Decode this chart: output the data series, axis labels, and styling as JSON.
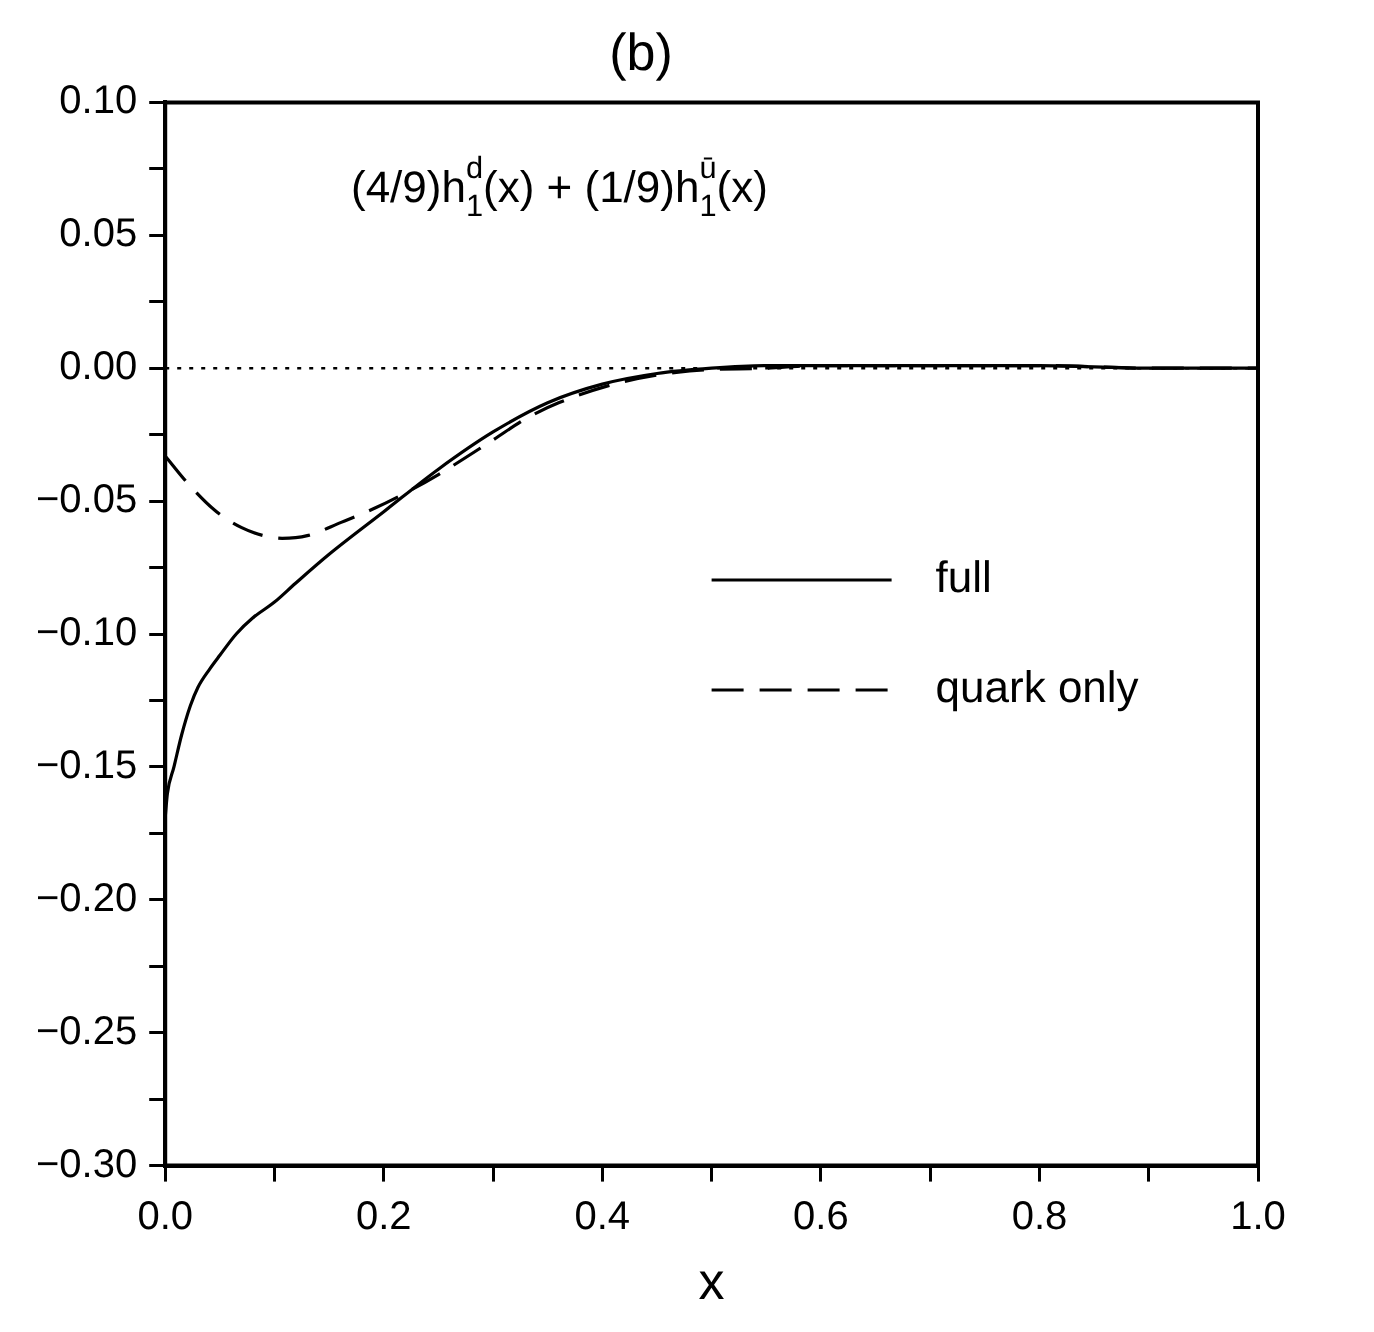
{
  "chart_data": {
    "type": "line",
    "title": "(b)",
    "xlabel": "x",
    "xlim": [
      0,
      1
    ],
    "xticks": [
      {
        "value": 0,
        "label": "0.0"
      },
      {
        "value": 0.1,
        "label": null
      },
      {
        "value": 0.2,
        "label": "0.2"
      },
      {
        "value": 0.3,
        "label": null
      },
      {
        "value": 0.4,
        "label": "0.4"
      },
      {
        "value": 0.5,
        "label": null
      },
      {
        "value": 0.6,
        "label": "0.6"
      },
      {
        "value": 0.7,
        "label": null
      },
      {
        "value": 0.8,
        "label": "0.8"
      },
      {
        "value": 0.9,
        "label": null
      },
      {
        "value": 1,
        "label": "1.0"
      }
    ],
    "ylim": [
      -0.3,
      0.1
    ],
    "yticks": [
      {
        "value": -0.3,
        "label": "−0.30"
      },
      {
        "value": -0.275,
        "label": null
      },
      {
        "value": -0.25,
        "label": "−0.25"
      },
      {
        "value": -0.225,
        "label": null
      },
      {
        "value": -0.2,
        "label": "−0.20"
      },
      {
        "value": -0.175,
        "label": null
      },
      {
        "value": -0.15,
        "label": "−0.15"
      },
      {
        "value": -0.125,
        "label": null
      },
      {
        "value": -0.1,
        "label": "−0.10"
      },
      {
        "value": -0.075,
        "label": null
      },
      {
        "value": -0.05,
        "label": "−0.05"
      },
      {
        "value": -0.025,
        "label": null
      },
      {
        "value": 0,
        "label": "0.00"
      },
      {
        "value": 0.025,
        "label": null
      },
      {
        "value": 0.05,
        "label": "0.05"
      },
      {
        "value": 0.075,
        "label": null
      },
      {
        "value": 0.1,
        "label": "0.10"
      }
    ],
    "grid": false,
    "legend": "right",
    "marker": "none",
    "annotations": [
      "(4/9)h$^{d}$$_{1}$(x) + (1/9)h$^{ū}$$_{1}$(x)"
    ],
    "ref_lines": [
      {
        "axis": "y",
        "value": 0,
        "line_style": "dotted",
        "color": "#000000"
      }
    ],
    "series": [
      {
        "name": "full",
        "color": "#000000",
        "line_style": "solid",
        "x": [
          0,
          0.002,
          0.008,
          0.015,
          0.023,
          0.03,
          0.041,
          0.05,
          0.065,
          0.08,
          0.1,
          0.119,
          0.15,
          0.2,
          0.25,
          0.3,
          0.35,
          0.4,
          0.45,
          0.5,
          0.55,
          0.6,
          0.7,
          0.8,
          0.9,
          1
        ],
        "values": [
          -0.169,
          -0.16,
          -0.15,
          -0.138,
          -0.127,
          -0.12,
          -0.113,
          -0.108,
          -0.1,
          -0.094,
          -0.088,
          -0.081,
          -0.07,
          -0.054,
          -0.038,
          -0.024,
          -0.013,
          -0.006,
          -0.002,
          0,
          0.001,
          0.001,
          0.001,
          0.001,
          0,
          0
        ]
      },
      {
        "name": "quark only",
        "color": "#000000",
        "line_style": "dashed",
        "x": [
          0,
          0.02,
          0.047,
          0.07,
          0.09,
          0.107,
          0.13,
          0.161,
          0.19,
          0.215,
          0.25,
          0.3,
          0.33,
          0.36,
          0.42,
          0.48,
          0.55,
          0.6,
          0.7,
          0.8,
          0.9,
          1
        ],
        "values": [
          -0.033,
          -0.043,
          -0.054,
          -0.06,
          -0.063,
          -0.064,
          -0.063,
          -0.058,
          -0.053,
          -0.048,
          -0.04,
          -0.027,
          -0.019,
          -0.013,
          -0.005,
          -0.001,
          0,
          0.001,
          0.001,
          0.001,
          0,
          0
        ]
      }
    ]
  }
}
